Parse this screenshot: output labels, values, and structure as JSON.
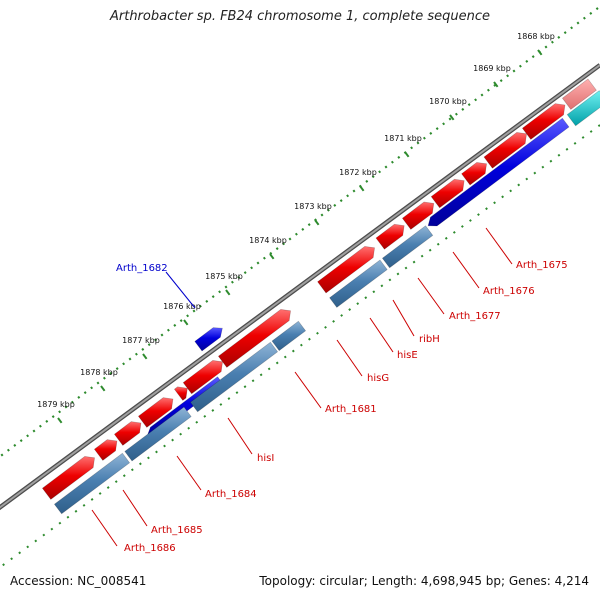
{
  "title": "Arthrobacter sp. FB24 chromosome 1, complete sequence",
  "footer": {
    "accession": "Accession: NC_008541",
    "summary": "Topology: circular; Length: 4,698,945 bp; Genes: 4,214"
  },
  "scale_ticks": [
    {
      "label": "1868 kbp",
      "kbp": 1868
    },
    {
      "label": "1869 kbp",
      "kbp": 1869
    },
    {
      "label": "1870 kbp",
      "kbp": 1870
    },
    {
      "label": "1871 kbp",
      "kbp": 1871
    },
    {
      "label": "1872 kbp",
      "kbp": 1872
    },
    {
      "label": "1873 kbp",
      "kbp": 1873
    },
    {
      "label": "1874 kbp",
      "kbp": 1874
    },
    {
      "label": "1875 kbp",
      "kbp": 1875
    },
    {
      "label": "1876 kbp",
      "kbp": 1876
    },
    {
      "label": "1877 kbp",
      "kbp": 1877
    },
    {
      "label": "1878 kbp",
      "kbp": 1878
    },
    {
      "label": "1879 kbp",
      "kbp": 1879
    }
  ],
  "genes": [
    {
      "name": "Arth_1675",
      "color": "#cc0000"
    },
    {
      "name": "Arth_1676",
      "color": "#cc0000"
    },
    {
      "name": "Arth_1677",
      "color": "#cc0000"
    },
    {
      "name": "ribH",
      "color": "#cc0000"
    },
    {
      "name": "hisE",
      "color": "#cc0000"
    },
    {
      "name": "hisG",
      "color": "#cc0000"
    },
    {
      "name": "Arth_1681",
      "color": "#cc0000"
    },
    {
      "name": "Arth_1682",
      "color": "#0000cc"
    },
    {
      "name": "hisI",
      "color": "#cc0000"
    },
    {
      "name": "Arth_1684",
      "color": "#cc0000"
    },
    {
      "name": "Arth_1685",
      "color": "#cc0000"
    },
    {
      "name": "Arth_1686",
      "color": "#cc0000"
    }
  ],
  "colors": {
    "backbone": "#808080",
    "cds_forward": "#ee0000",
    "cds_reverse_gene": "#0000dd",
    "cds_reverse_cds": "#4a7fb0",
    "cds_forward_light": "#f08080",
    "other_feature": "#00b8c0",
    "tick_marks": "#2e8b2e"
  }
}
